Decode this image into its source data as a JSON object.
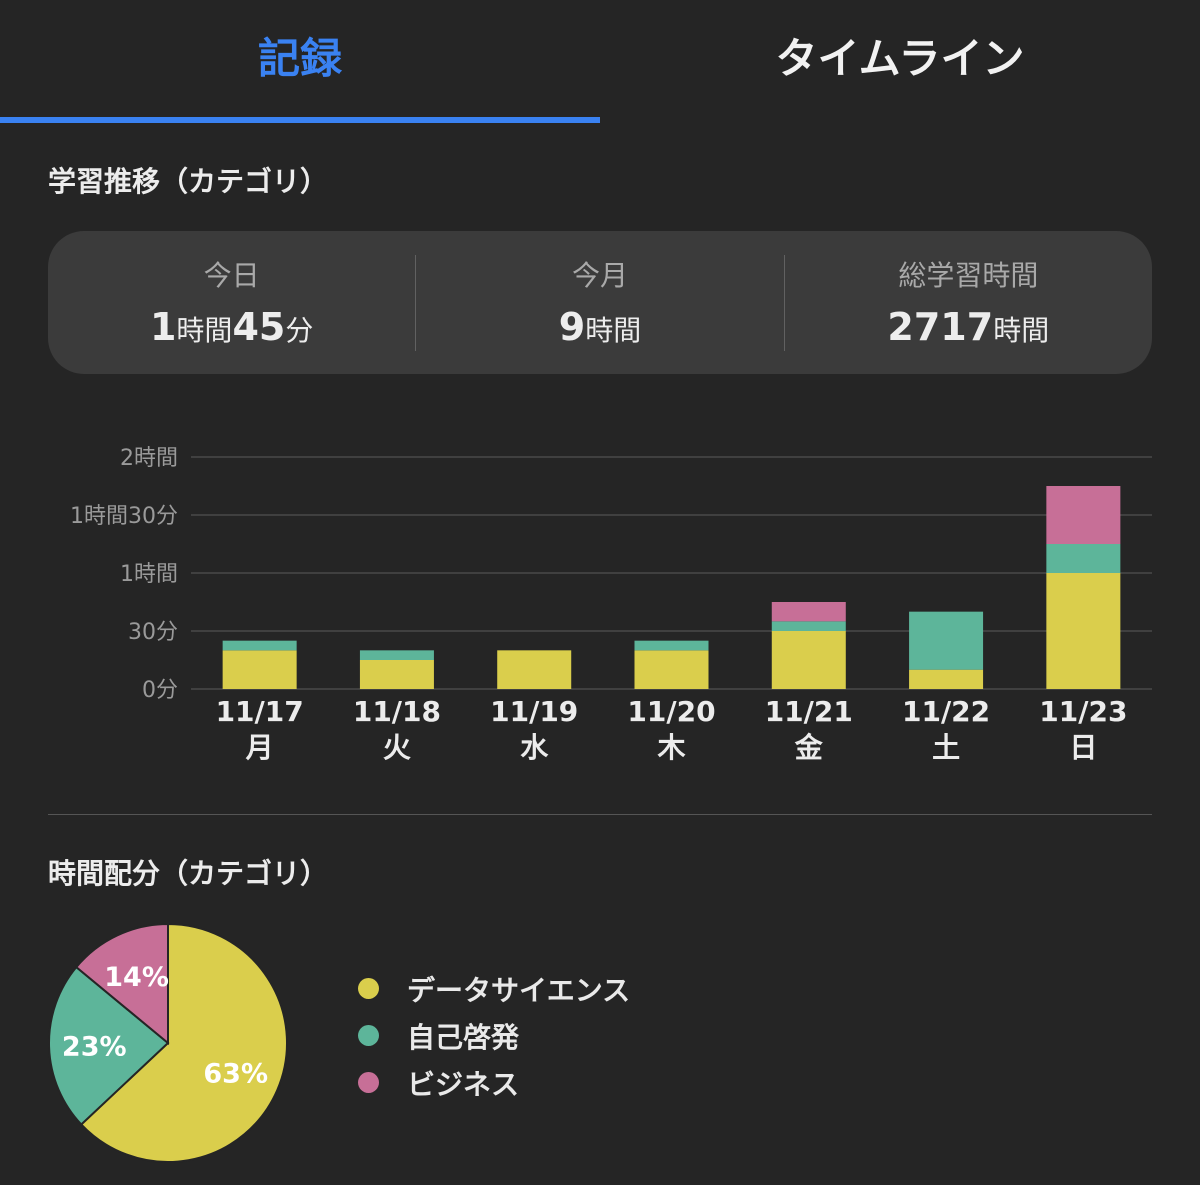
{
  "tabs": [
    {
      "label": "記録",
      "active": true
    },
    {
      "label": "タイムライン",
      "active": false
    }
  ],
  "colors": {
    "accent": "#3a82f2",
    "data_science": "#dace4c",
    "self_development": "#5db59a",
    "business": "#c76f97",
    "grid": "#4a4a4a"
  },
  "trend_section": {
    "title": "学習推移（カテゴリ）",
    "summary": [
      {
        "label": "今日",
        "value_parts": [
          {
            "text": "1",
            "type": "num"
          },
          {
            "text": "時間",
            "type": "unit"
          },
          {
            "text": "45",
            "type": "num"
          },
          {
            "text": "分",
            "type": "unit"
          }
        ]
      },
      {
        "label": "今月",
        "value_parts": [
          {
            "text": "9",
            "type": "num"
          },
          {
            "text": "時間",
            "type": "unit"
          }
        ]
      },
      {
        "label": "総学習時間",
        "value_parts": [
          {
            "text": "2717",
            "type": "num"
          },
          {
            "text": "時間",
            "type": "unit"
          }
        ]
      }
    ]
  },
  "distribution_section": {
    "title": "時間配分（カテゴリ）"
  },
  "chart_data": [
    {
      "type": "bar",
      "stacked": true,
      "title": "",
      "categories": [
        "11/17",
        "11/18",
        "11/19",
        "11/20",
        "11/21",
        "11/22",
        "11/23"
      ],
      "category_weekdays": [
        "月",
        "火",
        "水",
        "木",
        "金",
        "土",
        "日"
      ],
      "y_unit": "minutes",
      "ylim": [
        0,
        120
      ],
      "y_ticks": [
        {
          "value": 0,
          "label": "0分"
        },
        {
          "value": 30,
          "label": "30分"
        },
        {
          "value": 60,
          "label": "1時間"
        },
        {
          "value": 90,
          "label": "1時間30分"
        },
        {
          "value": 120,
          "label": "2時間"
        }
      ],
      "grid": true,
      "series": [
        {
          "name": "データサイエンス",
          "color": "#dace4c",
          "values": [
            20,
            15,
            20,
            20,
            30,
            10,
            60
          ]
        },
        {
          "name": "自己啓発",
          "color": "#5db59a",
          "values": [
            5,
            5,
            0,
            5,
            5,
            30,
            15
          ]
        },
        {
          "name": "ビジネス",
          "color": "#c76f97",
          "values": [
            0,
            0,
            0,
            0,
            10,
            0,
            30
          ]
        }
      ]
    },
    {
      "type": "pie",
      "title": "",
      "legend_placement": "right",
      "slices": [
        {
          "name": "データサイエンス",
          "value": 63,
          "label": "63%",
          "color": "#dace4c"
        },
        {
          "name": "自己啓発",
          "value": 23,
          "label": "23%",
          "color": "#5db59a"
        },
        {
          "name": "ビジネス",
          "value": 14,
          "label": "14%",
          "color": "#c76f97"
        }
      ]
    }
  ]
}
